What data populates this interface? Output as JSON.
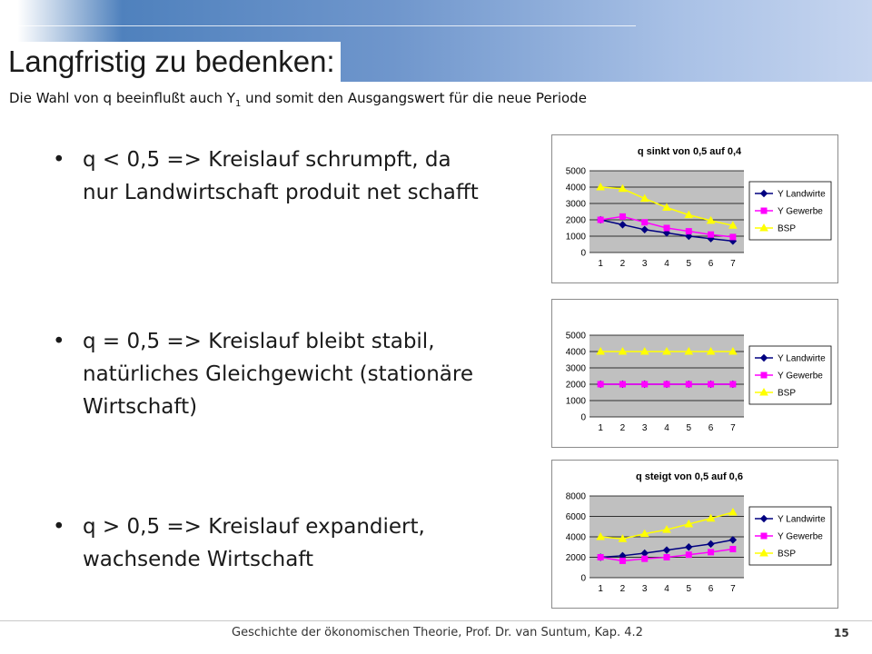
{
  "title": "Langfristig zu bedenken:",
  "subtitle": {
    "text": "Die Wahl von q beeinflußt auch Y",
    "sub": "1",
    "rest": " und somit den Ausgangswert für die neue Periode"
  },
  "bullets": [
    {
      "marker": "•",
      "text": "q < 0,5 => Kreislauf schrumpft, da nur Landwirtschaft produit net schafft"
    },
    {
      "marker": "•",
      "text": "q = 0,5 => Kreislauf bleibt stabil, natürliches Gleichgewicht (stationäre Wirtschaft)"
    },
    {
      "marker": "•",
      "text": "q > 0,5 => Kreislauf expandiert, wachsende Wirtschaft"
    }
  ],
  "footer": "Geschichte der ökonomischen Theorie, Prof. Dr. van Suntum, Kap. 4.2",
  "page_number": "15",
  "chart_data": [
    {
      "type": "line",
      "title": "q sinkt von 0,5 auf 0,4",
      "categories": [
        "1",
        "2",
        "3",
        "4",
        "5",
        "6",
        "7"
      ],
      "ylim": [
        0,
        5000
      ],
      "yticks": [
        0,
        1000,
        2000,
        3000,
        4000,
        5000
      ],
      "grid": true,
      "legend": "right",
      "series": [
        {
          "name": "Y Landwirte",
          "color": "#000080",
          "marker": "diamond",
          "values": [
            2000,
            1700,
            1400,
            1200,
            1000,
            850,
            700
          ]
        },
        {
          "name": "Y Gewerbe",
          "color": "#ff00ff",
          "marker": "square",
          "values": [
            2000,
            2200,
            1850,
            1500,
            1300,
            1100,
            950
          ]
        },
        {
          "name": "BSP",
          "color": "#ffff00",
          "marker": "triangle",
          "values": [
            4000,
            3900,
            3300,
            2750,
            2300,
            1950,
            1650
          ]
        }
      ]
    },
    {
      "type": "line",
      "title": "",
      "categories": [
        "1",
        "2",
        "3",
        "4",
        "5",
        "6",
        "7"
      ],
      "ylim": [
        0,
        5000
      ],
      "yticks": [
        0,
        1000,
        2000,
        3000,
        4000,
        5000
      ],
      "grid": true,
      "legend": "right",
      "series": [
        {
          "name": "Y Landwirte",
          "color": "#000080",
          "marker": "diamond",
          "values": [
            2000,
            2000,
            2000,
            2000,
            2000,
            2000,
            2000
          ]
        },
        {
          "name": "Y Gewerbe",
          "color": "#ff00ff",
          "marker": "square",
          "values": [
            2000,
            2000,
            2000,
            2000,
            2000,
            2000,
            2000
          ]
        },
        {
          "name": "BSP",
          "color": "#ffff00",
          "marker": "triangle",
          "values": [
            4000,
            4000,
            4000,
            4000,
            4000,
            4000,
            4000
          ]
        }
      ]
    },
    {
      "type": "line",
      "title": "q steigt von 0,5 auf 0,6",
      "categories": [
        "1",
        "2",
        "3",
        "4",
        "5",
        "6",
        "7"
      ],
      "ylim": [
        0,
        8000
      ],
      "yticks": [
        0,
        2000,
        4000,
        6000,
        8000
      ],
      "grid": true,
      "legend": "right",
      "series": [
        {
          "name": "Y Landwirte",
          "color": "#000080",
          "marker": "diamond",
          "values": [
            2000,
            2150,
            2400,
            2700,
            3000,
            3300,
            3700
          ]
        },
        {
          "name": "Y Gewerbe",
          "color": "#ff00ff",
          "marker": "square",
          "values": [
            2000,
            1650,
            1850,
            2000,
            2250,
            2500,
            2800
          ]
        },
        {
          "name": "BSP",
          "color": "#ffff00",
          "marker": "triangle",
          "values": [
            4000,
            3800,
            4300,
            4700,
            5250,
            5800,
            6400
          ]
        }
      ]
    }
  ]
}
